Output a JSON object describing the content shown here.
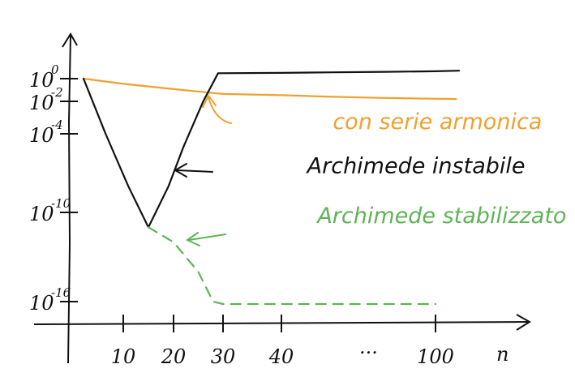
{
  "chart_data": {
    "type": "line",
    "title": "",
    "xlabel": "n",
    "ylabel": "",
    "y_scale": "log",
    "xlim": [
      0,
      120
    ],
    "ylim": [
      1e-18,
      10.0
    ],
    "x_ticks": [
      {
        "value": 10,
        "label": "10"
      },
      {
        "value": 20,
        "label": "20"
      },
      {
        "value": 30,
        "label": "30"
      },
      {
        "value": 40,
        "label": "40"
      },
      {
        "value": 100,
        "label": "100"
      }
    ],
    "x_ellipsis": "...",
    "y_ticks": [
      {
        "value": 1,
        "base": "10",
        "exp": "0"
      },
      {
        "value": 0.01,
        "base": "10",
        "exp": "-2"
      },
      {
        "value": 0.0001,
        "base": "10",
        "exp": "-4"
      },
      {
        "value": 1e-10,
        "base": "10",
        "exp": "-10"
      },
      {
        "value": 1e-16,
        "base": "10",
        "exp": "-16"
      }
    ],
    "grid": false,
    "legend": "none",
    "series": [
      {
        "name": "con serie armonica",
        "color": "#f0a030",
        "style": "solid",
        "label_position": [
          60,
          0.0002
        ],
        "points": [
          [
            1,
            1
          ],
          [
            10,
            0.35
          ],
          [
            20,
            0.12
          ],
          [
            30,
            0.045
          ],
          [
            40,
            0.035
          ],
          [
            60,
            0.025
          ],
          [
            80,
            0.02
          ],
          [
            100,
            0.017
          ],
          [
            107,
            0.016
          ]
        ]
      },
      {
        "name": "Archimede instabile",
        "color": "#111111",
        "style": "solid",
        "label_position": [
          50,
          1e-07
        ],
        "points": [
          [
            1,
            1
          ],
          [
            6,
            0.0001
          ],
          [
            11,
            1e-08
          ],
          [
            15,
            1e-11
          ],
          [
            19,
            1e-08
          ],
          [
            22,
            1e-05
          ],
          [
            26,
            0.01
          ],
          [
            29,
            3
          ],
          [
            40,
            3.2
          ],
          [
            60,
            3.6
          ],
          [
            80,
            4
          ],
          [
            100,
            4.5
          ],
          [
            108,
            5
          ]
        ]
      },
      {
        "name": "Archimede stabilizzato",
        "color": "#5fb356",
        "style": "dashed",
        "label_position": [
          54,
          2e-11
        ],
        "points": [
          [
            15,
            1e-11
          ],
          [
            20,
            1e-12
          ],
          [
            25,
            1e-14
          ],
          [
            28,
            1e-16
          ],
          [
            30,
            1e-17
          ],
          [
            50,
            1e-17
          ],
          [
            80,
            1e-17
          ],
          [
            100,
            1e-17
          ]
        ]
      }
    ]
  }
}
